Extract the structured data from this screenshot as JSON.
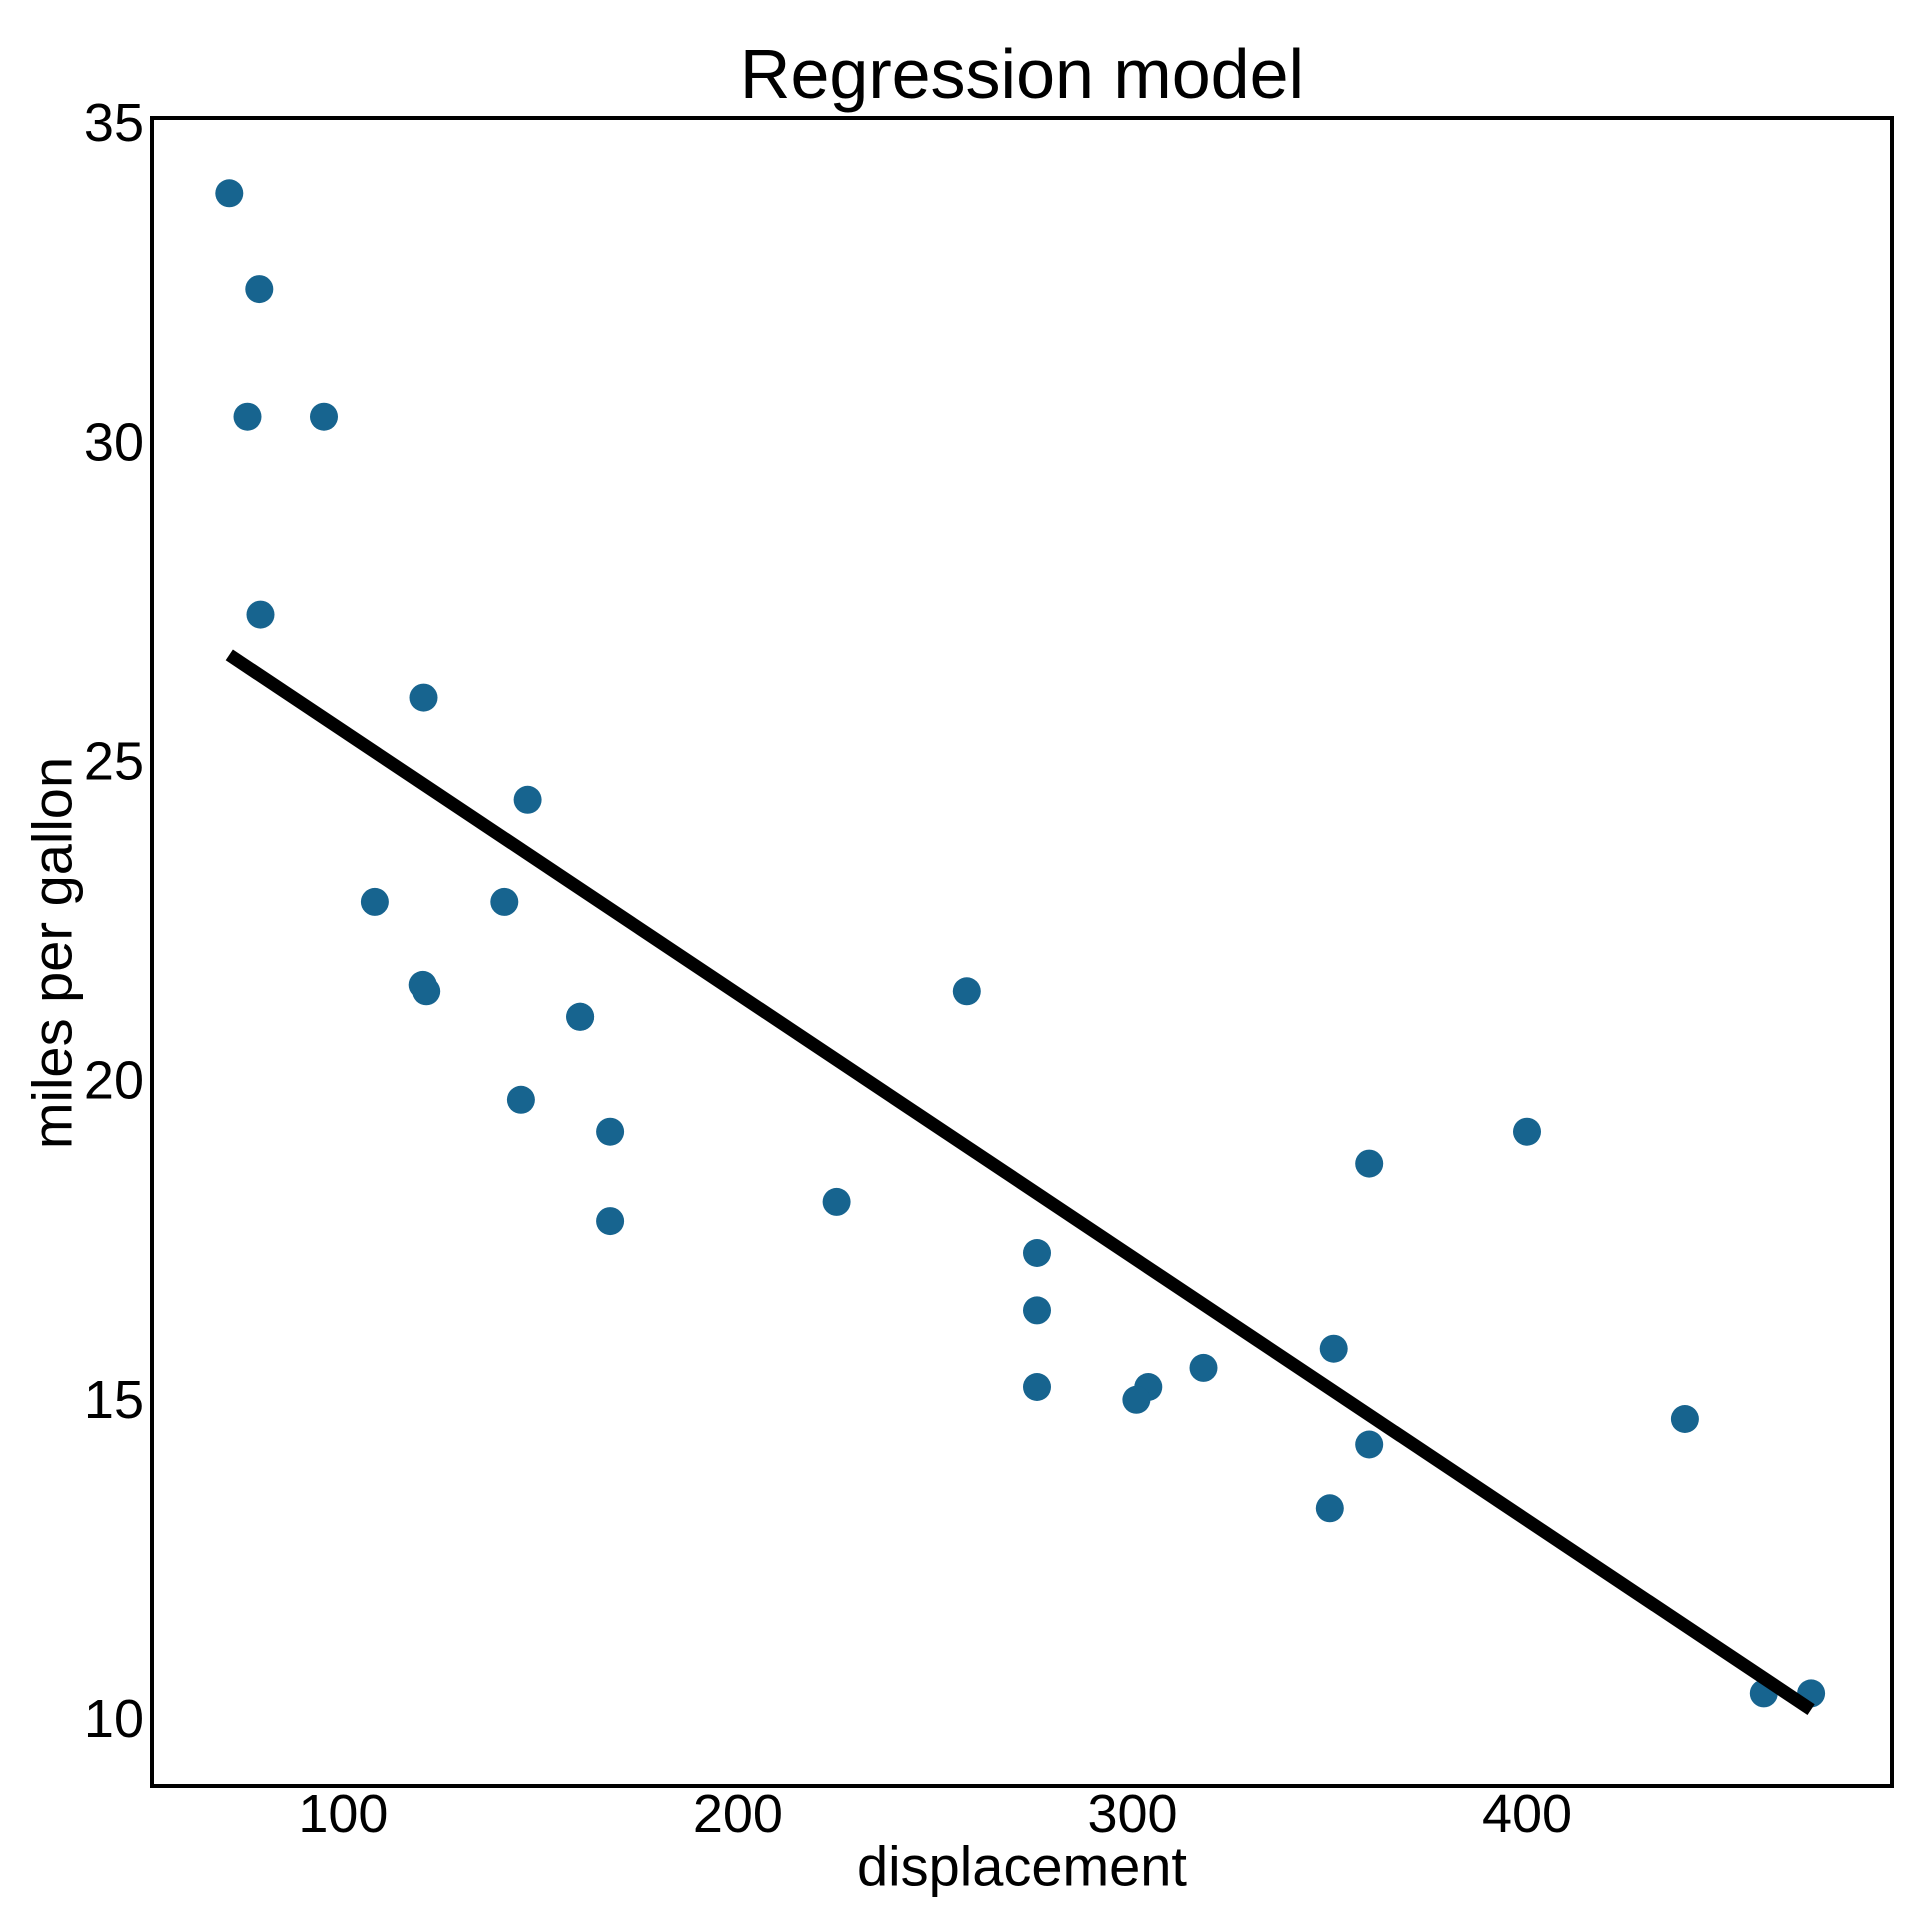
{
  "chart_data": {
    "type": "scatter",
    "title": "Regression model",
    "xlabel": "displacement",
    "ylabel": "miles per gallon",
    "x_ticks": [
      100,
      200,
      300,
      400
    ],
    "y_ticks": [
      10,
      15,
      20,
      25,
      30,
      35
    ],
    "xlim": [
      51.5,
      492.5
    ],
    "ylim": [
      8.95,
      35.08
    ],
    "grid": false,
    "legend": null,
    "point_color": "#17648f",
    "regression_line_color": "#000000",
    "spine_color": "#000000",
    "text_color": "#000000",
    "points": [
      [
        160.0,
        21.0
      ],
      [
        160.0,
        21.0
      ],
      [
        108.0,
        22.8
      ],
      [
        258.0,
        21.4
      ],
      [
        360.0,
        18.7
      ],
      [
        225.0,
        18.1
      ],
      [
        360.0,
        14.3
      ],
      [
        146.7,
        24.4
      ],
      [
        140.8,
        22.8
      ],
      [
        167.6,
        19.2
      ],
      [
        167.6,
        17.8
      ],
      [
        275.8,
        16.4
      ],
      [
        275.8,
        17.3
      ],
      [
        275.8,
        15.2
      ],
      [
        472.0,
        10.4
      ],
      [
        460.0,
        10.4
      ],
      [
        440.0,
        14.7
      ],
      [
        78.7,
        32.4
      ],
      [
        75.7,
        30.4
      ],
      [
        71.1,
        33.9
      ],
      [
        120.1,
        21.5
      ],
      [
        318.0,
        15.5
      ],
      [
        304.0,
        15.2
      ],
      [
        350.0,
        13.3
      ],
      [
        400.0,
        19.2
      ],
      [
        79.0,
        27.3
      ],
      [
        120.3,
        26.0
      ],
      [
        95.1,
        30.4
      ],
      [
        351.0,
        15.8
      ],
      [
        145.0,
        19.7
      ],
      [
        301.0,
        15.0
      ],
      [
        121.0,
        21.4
      ]
    ],
    "regression_line": {
      "intercept": 29.59985,
      "slope": -0.0412151,
      "x_start": 71.1,
      "x_end": 472.0
    }
  }
}
